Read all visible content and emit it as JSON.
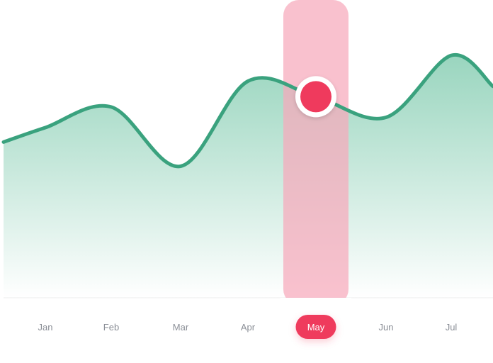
{
  "colors": {
    "line": "#3aa27e",
    "area_top": "#94d3bb",
    "highlight_band": "#f7a9bb",
    "marker": "#ef3a5d",
    "pill": "#ef3a5d",
    "label": "#8a8e96",
    "baseline": "#ececec"
  },
  "chart_data": {
    "type": "area",
    "categories": [
      "Jan",
      "Feb",
      "Mar",
      "Apr",
      "May",
      "Jun",
      "Jul"
    ],
    "series": [
      {
        "values": [
          62,
          70,
          47,
          80,
          74,
          66,
          90
        ]
      }
    ],
    "highlighted_category": "May",
    "grid": false,
    "legend": "none",
    "xlabel": "",
    "ylabel": ""
  }
}
